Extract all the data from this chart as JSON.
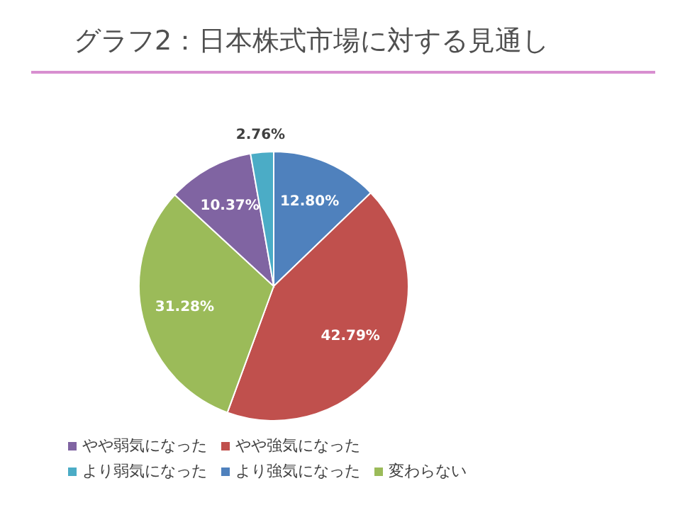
{
  "chart_data": {
    "type": "pie",
    "title": "グラフ2：日本株式市場に対する見通し",
    "categories": [
      "より強気になった",
      "やや強気になった",
      "変わらない",
      "やや弱気になった",
      "より弱気になった"
    ],
    "values": [
      12.8,
      42.79,
      31.28,
      10.37,
      2.76
    ],
    "value_labels": [
      "12.80%",
      "42.79%",
      "31.28%",
      "10.37%",
      "2.76%"
    ],
    "colors": [
      "#4f81bd",
      "#c0504d",
      "#9bbb59",
      "#8064a2",
      "#4bacc6"
    ],
    "legend": "bottom"
  }
}
